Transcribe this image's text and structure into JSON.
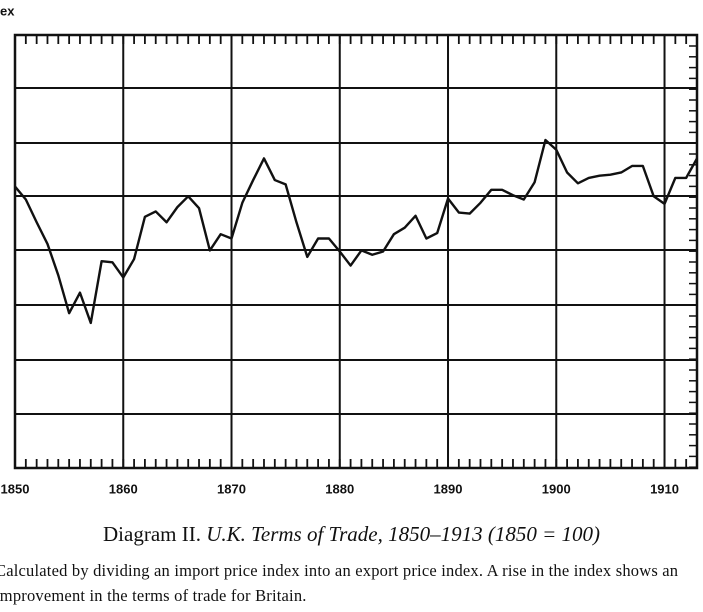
{
  "chart_data": {
    "type": "line",
    "title": "Diagram II.",
    "subtitle": "U.K. Terms of Trade, 1850–1913 (1850 = 100)",
    "note": "Calculated by dividing an import price index into an export price index. A rise in the index shows an improvement in the terms of trade for Britain.",
    "y_label": "ex",
    "x": [
      1850,
      1851,
      1852,
      1853,
      1854,
      1855,
      1856,
      1857,
      1858,
      1859,
      1860,
      1861,
      1862,
      1863,
      1864,
      1865,
      1866,
      1867,
      1868,
      1869,
      1870,
      1871,
      1872,
      1873,
      1874,
      1875,
      1876,
      1877,
      1878,
      1879,
      1880,
      1881,
      1882,
      1883,
      1884,
      1885,
      1886,
      1887,
      1888,
      1889,
      1890,
      1891,
      1892,
      1893,
      1894,
      1895,
      1896,
      1897,
      1898,
      1899,
      1900,
      1901,
      1902,
      1903,
      1904,
      1905,
      1906,
      1907,
      1908,
      1909,
      1910,
      1911,
      1912,
      1913
    ],
    "series": [
      {
        "name": "Terms of trade",
        "color": "#111111",
        "values": [
          100,
          98.8,
          96.7,
          94.7,
          91.8,
          88.3,
          90.2,
          87.4,
          93.1,
          93.0,
          91.6,
          93.3,
          97.2,
          97.7,
          96.7,
          98.1,
          99.1,
          98.0,
          94.1,
          95.6,
          95.2,
          98.5,
          100.6,
          102.6,
          100.6,
          100.2,
          96.7,
          93.5,
          95.2,
          95.2,
          94.0,
          92.7,
          94.1,
          93.7,
          94.0,
          95.6,
          96.2,
          97.3,
          95.2,
          95.7,
          98.9,
          97.6,
          97.5,
          98.5,
          99.7,
          99.7,
          99.2,
          98.8,
          100.4,
          104.3,
          103.4,
          101.3,
          100.3,
          100.8,
          101.0,
          101.1,
          101.3,
          101.9,
          101.9,
          99.1,
          98.4,
          100.8,
          100.8,
          102.6
        ]
      }
    ],
    "xlim": [
      1850,
      1913
    ],
    "xticks": [
      1850,
      1860,
      1870,
      1880,
      1890,
      1900,
      1910
    ],
    "ylim": [
      74,
      114
    ]
  }
}
